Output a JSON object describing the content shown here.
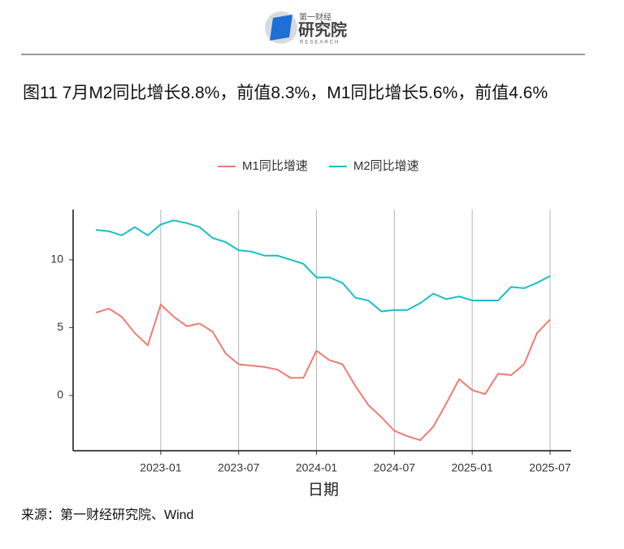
{
  "header": {
    "logo_top": "第一财经",
    "logo_main": "研究院",
    "logo_sub": "RESEARCH"
  },
  "chart_data": {
    "type": "line",
    "title": "图11 7月M2同比增长8.8%，前值8.3%，M1同比增长5.6%，前值4.6%",
    "x_label": "日期",
    "categories": [
      null,
      null,
      null,
      null,
      null,
      "2023-01",
      null,
      null,
      null,
      null,
      null,
      "2023-07",
      null,
      null,
      null,
      null,
      null,
      "2024-01",
      null,
      null,
      null,
      null,
      null,
      "2024-07",
      null,
      null,
      null,
      null,
      null,
      "2025-01",
      null,
      null,
      null,
      null,
      null,
      "2025-07"
    ],
    "series": [
      {
        "name": "M1同比增速",
        "color": "#f07b72",
        "values": [
          6.1,
          6.4,
          5.8,
          4.6,
          3.7,
          6.7,
          5.8,
          5.1,
          5.3,
          4.7,
          3.1,
          2.3,
          2.2,
          2.1,
          1.9,
          1.3,
          1.3,
          3.3,
          2.6,
          2.3,
          0.7,
          -0.7,
          -1.6,
          -2.6,
          -3.0,
          -3.3,
          -2.3,
          -0.6,
          1.2,
          0.4,
          0.1,
          1.6,
          1.5,
          2.3,
          4.6,
          5.6
        ]
      },
      {
        "name": "M2同比增速",
        "color": "#19bec5",
        "values": [
          12.2,
          12.1,
          11.8,
          12.4,
          11.8,
          12.6,
          12.9,
          12.7,
          12.4,
          11.6,
          11.3,
          10.7,
          10.6,
          10.3,
          10.3,
          10.0,
          9.7,
          8.7,
          8.7,
          8.3,
          7.2,
          7.0,
          6.2,
          6.3,
          6.3,
          6.8,
          7.5,
          7.1,
          7.3,
          7.0,
          7.0,
          7.0,
          8.0,
          7.9,
          8.3,
          8.8
        ]
      }
    ],
    "ylim": [
      -4.07,
      13.7
    ],
    "yticks": [
      0,
      5,
      10
    ],
    "grid": true,
    "legend": "top",
    "source": "来源：第一财经研究院、Wind"
  }
}
